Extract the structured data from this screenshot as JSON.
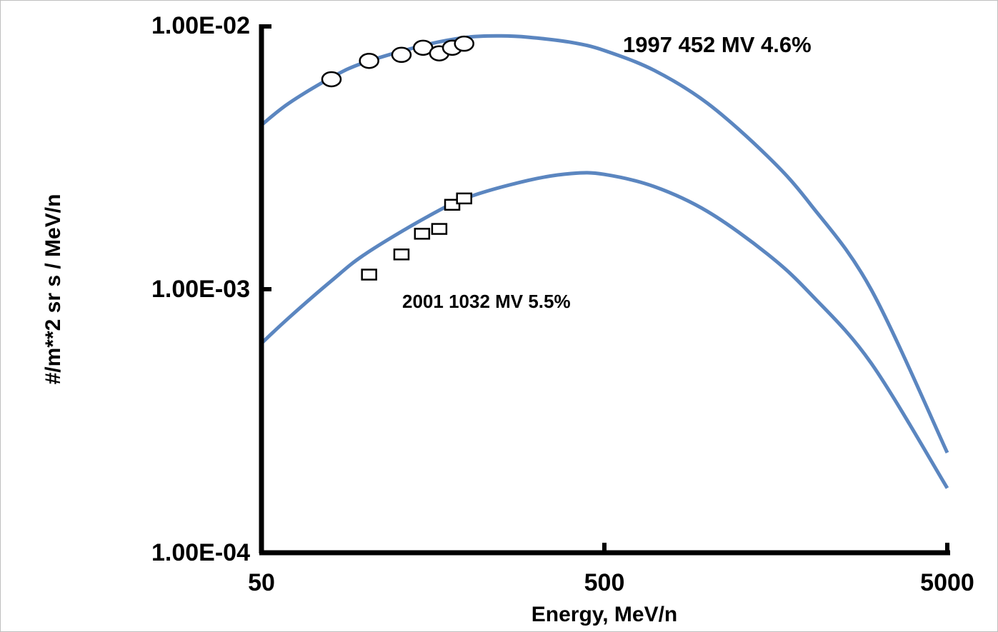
{
  "chart_data": {
    "type": "line",
    "title": "",
    "xlabel": "Energy, MeV/n",
    "ylabel": "#/m**2 sr s / MeV/n",
    "x_scale": "log",
    "y_scale": "log",
    "xlim": [
      50,
      5000
    ],
    "ylim": [
      0.0001,
      0.01
    ],
    "x_ticks": [
      "50",
      "500",
      "5000"
    ],
    "y_ticks": [
      "1.00E-02",
      "1.00E-03",
      "1.00E-04"
    ],
    "grid": false,
    "line_color": "#5b86c0",
    "series": [
      {
        "label": "1997 452 MV 4.6%",
        "curve_x": [
          50,
          60,
          80,
          100,
          150,
          200,
          250,
          300,
          400,
          500,
          700,
          1000,
          1500,
          2000,
          3000,
          5000
        ],
        "curve_y": [
          0.00422,
          0.0051,
          0.0064,
          0.0073,
          0.0085,
          0.0091,
          0.0092,
          0.0091,
          0.0087,
          0.0081,
          0.0068,
          0.0051,
          0.0032,
          0.0021,
          0.001,
          0.00024
        ],
        "points_x": [
          80,
          103,
          128,
          148,
          165,
          180,
          195
        ],
        "points_y": [
          0.0063,
          0.0074,
          0.0078,
          0.0083,
          0.0079,
          0.0083,
          0.0086
        ],
        "marker": "circle"
      },
      {
        "label": "2001 1032 MV 5.5%",
        "curve_x": [
          50,
          60,
          80,
          100,
          150,
          200,
          300,
          400,
          500,
          700,
          1000,
          1500,
          2000,
          3000,
          5000
        ],
        "curve_y": [
          0.000625,
          0.00078,
          0.00108,
          0.00136,
          0.00187,
          0.00224,
          0.0026,
          0.00276,
          0.00274,
          0.00246,
          0.00198,
          0.00136,
          0.00096,
          0.000525,
          0.000176
        ],
        "points_x": [
          103,
          128,
          147,
          165,
          180,
          195
        ],
        "points_y": [
          0.00114,
          0.00136,
          0.00163,
          0.0017,
          0.0021,
          0.00222
        ],
        "marker": "square"
      }
    ]
  }
}
